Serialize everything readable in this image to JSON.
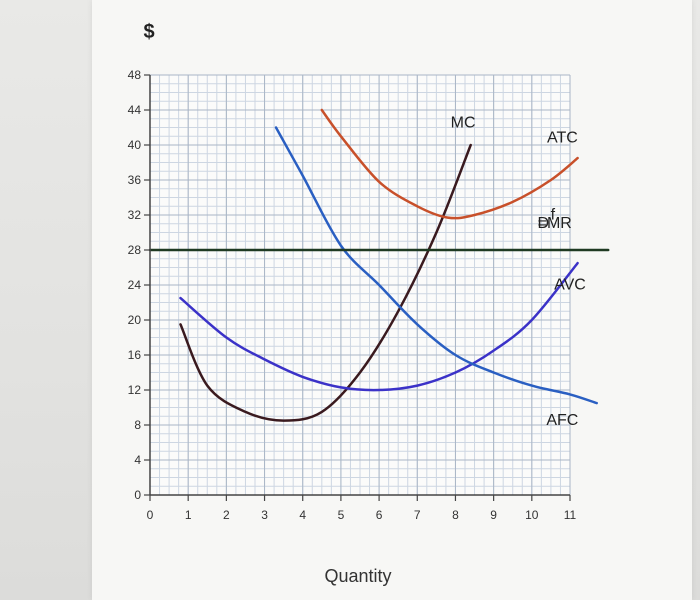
{
  "chart_data": {
    "type": "line",
    "ylabel": "$",
    "xlabel": "Quantity",
    "xlim": [
      0,
      11
    ],
    "ylim": [
      0,
      48
    ],
    "x_ticks": [
      "0",
      "1",
      "2",
      "3",
      "4",
      "5",
      "6",
      "7",
      "8",
      "9",
      "10",
      "11"
    ],
    "y_ticks": [
      "0",
      "4",
      "8",
      "12",
      "16",
      "20",
      "24",
      "28",
      "32",
      "36",
      "40",
      "44",
      "48"
    ],
    "grid": true,
    "series": [
      {
        "name": "MC",
        "color": "#3a1a1f",
        "x": [
          0.8,
          1.5,
          2.5,
          3.5,
          4.5,
          5.5,
          6.5,
          7.5,
          8.4
        ],
        "y": [
          19.5,
          12.5,
          9.5,
          8.5,
          9.5,
          14,
          21,
          30,
          40
        ]
      },
      {
        "name": "ATC",
        "color": "#c8502a",
        "x": [
          4.5,
          5,
          6,
          7,
          7.8,
          8.5,
          9.5,
          10.5,
          11.2
        ],
        "y": [
          44,
          41,
          35.8,
          33,
          31.7,
          32,
          33.5,
          36,
          38.5
        ]
      },
      {
        "name": "AVC",
        "color": "#3b32c8",
        "x": [
          0.8,
          2,
          3,
          4,
          5,
          6,
          7,
          8,
          9,
          10,
          11.2
        ],
        "y": [
          22.5,
          18,
          15.5,
          13.5,
          12.3,
          12,
          12.5,
          14,
          16.5,
          20,
          26.5
        ]
      },
      {
        "name": "AFC",
        "color": "#2a5fc2",
        "x": [
          3.3,
          4,
          5,
          6,
          7,
          8,
          9,
          10,
          11,
          11.7
        ],
        "y": [
          42,
          36.5,
          28.5,
          24,
          19.5,
          16,
          14,
          12.5,
          11.5,
          10.5
        ]
      },
      {
        "name": "D=MR",
        "color": "#1f3a22",
        "x": [
          0,
          12
        ],
        "y": [
          28,
          28
        ]
      }
    ],
    "annotations": [
      {
        "text": "MC",
        "x": 8.2,
        "y": 42
      },
      {
        "text": "ATC",
        "x": 10.8,
        "y": 40.3
      },
      {
        "text": "D",
        "x": 10.3,
        "y": 30.5
      },
      {
        "text": "f",
        "x": 10.55,
        "y": 31.5
      },
      {
        "text": "=MR",
        "x": 10.6,
        "y": 30.5
      },
      {
        "text": "AVC",
        "x": 11,
        "y": 23.5
      },
      {
        "text": "AFC",
        "x": 10.8,
        "y": 8
      }
    ]
  }
}
